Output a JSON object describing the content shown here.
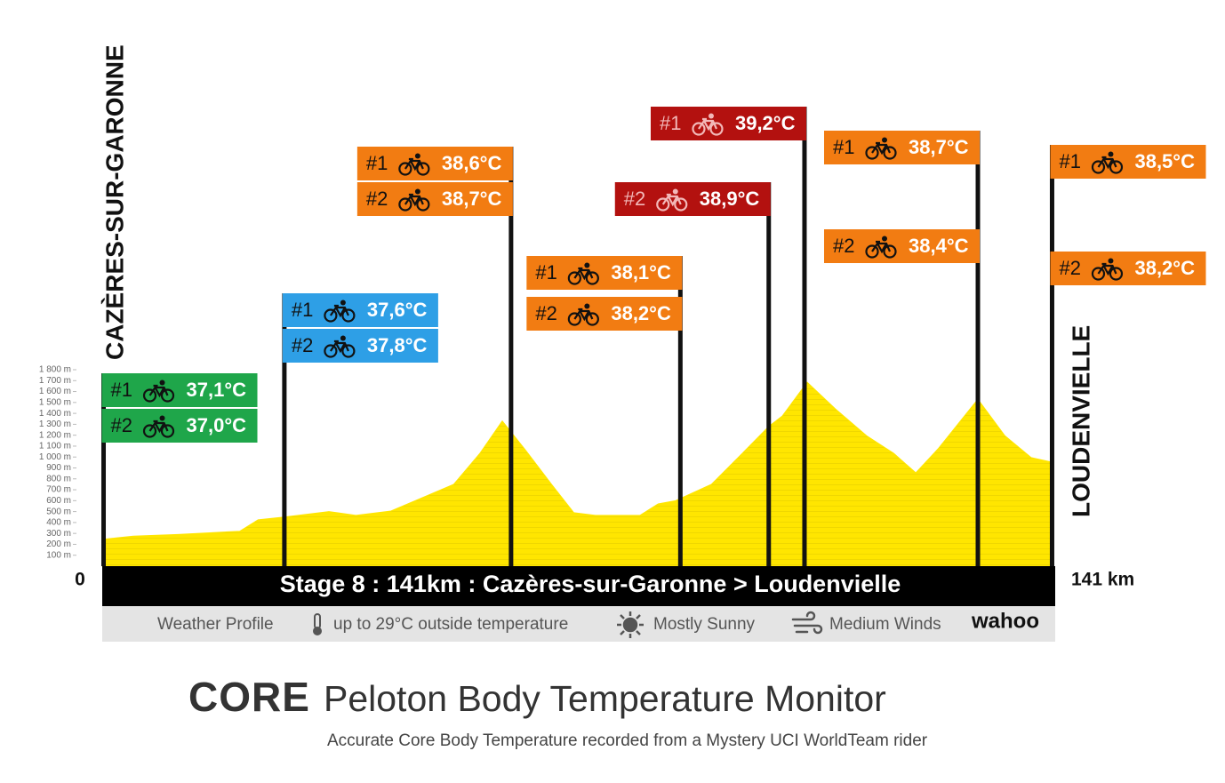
{
  "chart_data": {
    "type": "area",
    "title": "Stage 8 : 141km : Cazères-sur-Garonne > Loudenvielle",
    "start_name": "CAZÈRES-SUR-GARONNE",
    "end_name": "LOUDENVIELLE",
    "x": [
      0,
      4.6,
      11.2,
      20.4,
      23.1,
      27,
      33.6,
      37.6,
      42.8,
      46.8,
      52.1,
      56,
      59.3,
      62.6,
      66.6,
      69.9,
      73.1,
      79.7,
      82.4,
      85,
      90.3,
      94.9,
      98.8,
      100.8,
      104.5,
      108.7,
      113.3,
      117.3,
      120.6,
      123.9,
      129.8,
      133.8,
      137.7,
      141
    ],
    "values": [
      245,
      275,
      290,
      320,
      425,
      450,
      500,
      465,
      505,
      610,
      750,
      1035,
      1330,
      1075,
      750,
      490,
      465,
      465,
      570,
      600,
      750,
      1035,
      1280,
      1375,
      1685,
      1440,
      1195,
      1035,
      855,
      1075,
      1530,
      1195,
      995,
      950
    ],
    "color": "#ffe600",
    "xlim": [
      0,
      141
    ],
    "xticks": [
      0,
      {
        "value": 141,
        "label": "141 km"
      }
    ],
    "ylim": [
      0,
      1800
    ],
    "yticks": [
      {
        "value": 100,
        "label": "100 m"
      },
      {
        "value": 200,
        "label": "200 m"
      },
      {
        "value": 300,
        "label": "300 m"
      },
      {
        "value": 400,
        "label": "400 m"
      },
      {
        "value": 500,
        "label": "500 m"
      },
      {
        "value": 600,
        "label": "600 m"
      },
      {
        "value": 700,
        "label": "700 m"
      },
      {
        "value": 800,
        "label": "800 m"
      },
      {
        "value": 900,
        "label": "900 m"
      },
      {
        "value": 1000,
        "label": "1 000 m"
      },
      {
        "value": 1100,
        "label": "1 100 m"
      },
      {
        "value": 1200,
        "label": "1 200 m"
      },
      {
        "value": 1300,
        "label": "1 300 m"
      },
      {
        "value": 1400,
        "label": "1 400 m"
      },
      {
        "value": 1500,
        "label": "1 500 m"
      },
      {
        "value": 1600,
        "label": "1 600 m"
      },
      {
        "value": 1700,
        "label": "1 700 m"
      },
      {
        "value": 1800,
        "label": "1 800 m"
      }
    ],
    "checkpoints": [
      {
        "km": 0.2,
        "readings": [
          {
            "rider": "#1",
            "value": 37.1,
            "label": "37,1°C",
            "color": "#1fa64a",
            "ink": "#111111"
          },
          {
            "rider": "#2",
            "value": 37.0,
            "label": "37,0°C",
            "color": "#1fa64a",
            "ink": "#111111"
          }
        ]
      },
      {
        "km": 27,
        "readings": [
          {
            "rider": "#1",
            "value": 37.6,
            "label": "37,6°C",
            "color": "#2e9fe6",
            "ink": "#111111"
          },
          {
            "rider": "#2",
            "value": 37.8,
            "label": "37,8°C",
            "color": "#2e9fe6",
            "ink": "#111111"
          }
        ]
      },
      {
        "km": 60.6,
        "readings": [
          {
            "rider": "#1",
            "value": 38.6,
            "label": "38,6°C",
            "color": "#f27c12",
            "ink": "#111111"
          },
          {
            "rider": "#2",
            "value": 38.7,
            "label": "38,7°C",
            "color": "#f27c12",
            "ink": "#111111"
          }
        ]
      },
      {
        "km": 85.7,
        "readings": [
          {
            "rider": "#1",
            "value": 38.1,
            "label": "38,1°C",
            "color": "#f27c12",
            "ink": "#111111"
          },
          {
            "rider": "#2",
            "value": 38.2,
            "label": "38,2°C",
            "color": "#f27c12",
            "ink": "#111111"
          }
        ]
      },
      {
        "km": 98.8,
        "readings": [
          {
            "rider": "#2",
            "value": 38.9,
            "label": "38,9°C",
            "color": "#b3110f",
            "ink": "#f2b8b8"
          }
        ]
      },
      {
        "km": 104.1,
        "readings": [
          {
            "rider": "#1",
            "value": 39.2,
            "label": "39,2°C",
            "color": "#b3110f",
            "ink": "#f2b8b8"
          }
        ]
      },
      {
        "km": 129.8,
        "readings": [
          {
            "rider": "#1",
            "value": 38.7,
            "label": "38,7°C",
            "color": "#f27c12",
            "ink": "#111111"
          },
          {
            "rider": "#2",
            "value": 38.4,
            "label": "38,4°C",
            "color": "#f27c12",
            "ink": "#111111"
          }
        ]
      },
      {
        "km": 140.8,
        "readings": [
          {
            "rider": "#1",
            "value": 38.5,
            "label": "38,5°C",
            "color": "#f27c12",
            "ink": "#111111"
          },
          {
            "rider": "#2",
            "value": 38.2,
            "label": "38,2°C",
            "color": "#f27c12",
            "ink": "#111111"
          }
        ]
      }
    ]
  },
  "weather": {
    "label": "Weather Profile",
    "temperature": "up to 29°C outside temperature",
    "sky": "Mostly Sunny",
    "wind": "Medium Winds",
    "sponsor": "wahoo"
  },
  "footer": {
    "logo": "CORE",
    "title": "Peloton Body Temperature Monitor",
    "subtitle": "Accurate Core Body Temperature recorded from a Mystery UCI WorldTeam rider"
  }
}
